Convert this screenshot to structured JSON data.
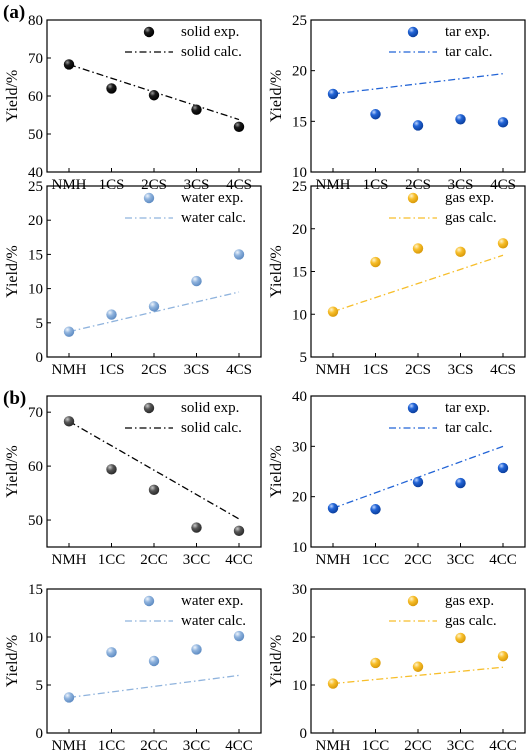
{
  "panel_labels": [
    "(a)",
    "(b)"
  ],
  "colors": {
    "solid": "#1a1a1a",
    "solid_b": "#555555",
    "tar": "#2264d6",
    "water": "#8fb3dd",
    "gas": "#f7be2a"
  },
  "chart_data": [
    {
      "type": "scatter",
      "panel": "(a)",
      "group": "solid",
      "categories": [
        "NMH",
        "1CS",
        "2CS",
        "3CS",
        "4CS"
      ],
      "ylabel": "Yield/%",
      "ylim": [
        40,
        80
      ],
      "yticks": [
        40,
        50,
        60,
        70,
        80
      ],
      "series": [
        {
          "name": "solid exp.",
          "kind": "points",
          "values": [
            68.3,
            62.0,
            60.2,
            56.4,
            51.9
          ]
        },
        {
          "name": "solid calc.",
          "kind": "line",
          "dash": "dashdot",
          "values": [
            68.3,
            null,
            null,
            null,
            53.8
          ]
        }
      ],
      "legend": "top-right"
    },
    {
      "type": "scatter",
      "panel": "(a)",
      "group": "tar",
      "categories": [
        "NMH",
        "1CS",
        "2CS",
        "3CS",
        "4CS"
      ],
      "ylabel": "Yield/%",
      "ylim": [
        10,
        25
      ],
      "yticks": [
        10,
        15,
        20,
        25
      ],
      "series": [
        {
          "name": "tar exp.",
          "kind": "points",
          "values": [
            17.7,
            15.7,
            14.6,
            15.2,
            14.9
          ]
        },
        {
          "name": "tar calc.",
          "kind": "line",
          "dash": "dashdot",
          "values": [
            17.7,
            null,
            null,
            null,
            19.7
          ]
        }
      ],
      "legend": "top-right"
    },
    {
      "type": "scatter",
      "panel": "(a)",
      "group": "water",
      "categories": [
        "NMH",
        "1CS",
        "2CS",
        "3CS",
        "4CS"
      ],
      "ylabel": "Yield/%",
      "ylim": [
        0,
        25
      ],
      "yticks": [
        0,
        5,
        10,
        15,
        20,
        25
      ],
      "series": [
        {
          "name": "water exp.",
          "kind": "points",
          "values": [
            3.7,
            6.2,
            7.4,
            11.1,
            15.0
          ]
        },
        {
          "name": "water calc.",
          "kind": "line",
          "dash": "dashdot",
          "values": [
            3.7,
            null,
            null,
            null,
            9.5
          ]
        }
      ],
      "legend": "top-right"
    },
    {
      "type": "scatter",
      "panel": "(a)",
      "group": "gas",
      "categories": [
        "NMH",
        "1CS",
        "2CS",
        "3CS",
        "4CS"
      ],
      "ylabel": "Yield/%",
      "ylim": [
        5,
        25
      ],
      "yticks": [
        5,
        10,
        15,
        20,
        25
      ],
      "series": [
        {
          "name": "gas exp.",
          "kind": "points",
          "values": [
            10.3,
            16.1,
            17.7,
            17.3,
            18.3
          ]
        },
        {
          "name": "gas calc.",
          "kind": "line",
          "dash": "dashdot",
          "values": [
            10.3,
            null,
            null,
            null,
            16.9
          ]
        }
      ],
      "legend": "top-right"
    },
    {
      "type": "scatter",
      "panel": "(b)",
      "group": "solid",
      "categories": [
        "NMH",
        "1CC",
        "2CC",
        "3CC",
        "4CC"
      ],
      "ylabel": "Yield/%",
      "ylim": [
        45,
        73
      ],
      "yticks": [
        50,
        60,
        70
      ],
      "series": [
        {
          "name": "solid exp.",
          "kind": "points",
          "values": [
            68.3,
            59.4,
            55.6,
            48.6,
            48.0
          ]
        },
        {
          "name": "solid calc.",
          "kind": "line",
          "dash": "dashdot",
          "values": [
            68.3,
            null,
            null,
            null,
            50.2
          ]
        }
      ],
      "legend": "top-right"
    },
    {
      "type": "scatter",
      "panel": "(b)",
      "group": "tar",
      "categories": [
        "NMH",
        "1CC",
        "2CC",
        "3CC",
        "4CC"
      ],
      "ylabel": "Yield/%",
      "ylim": [
        10,
        40
      ],
      "yticks": [
        10,
        20,
        30,
        40
      ],
      "series": [
        {
          "name": "tar exp.",
          "kind": "points",
          "values": [
            17.7,
            17.5,
            22.9,
            22.7,
            25.7
          ]
        },
        {
          "name": "tar calc.",
          "kind": "line",
          "dash": "dashdot",
          "values": [
            17.7,
            null,
            null,
            null,
            30.0
          ]
        }
      ],
      "legend": "top-right"
    },
    {
      "type": "scatter",
      "panel": "(b)",
      "group": "water",
      "categories": [
        "NMH",
        "1CC",
        "2CC",
        "3CC",
        "4CC"
      ],
      "ylabel": "Yield/%",
      "ylim": [
        0,
        15
      ],
      "yticks": [
        0,
        5,
        10,
        15
      ],
      "series": [
        {
          "name": "water exp.",
          "kind": "points",
          "values": [
            3.7,
            8.4,
            7.5,
            8.7,
            10.1
          ]
        },
        {
          "name": "water calc.",
          "kind": "line",
          "dash": "dashdot",
          "values": [
            3.7,
            null,
            null,
            null,
            6.0
          ]
        }
      ],
      "legend": "top-right"
    },
    {
      "type": "scatter",
      "panel": "(b)",
      "group": "gas",
      "categories": [
        "NMH",
        "1CC",
        "2CC",
        "3CC",
        "4CC"
      ],
      "ylabel": "Yield/%",
      "ylim": [
        0,
        30
      ],
      "yticks": [
        0,
        10,
        20,
        30
      ],
      "series": [
        {
          "name": "gas exp.",
          "kind": "points",
          "values": [
            10.3,
            14.6,
            13.8,
            19.8,
            16.0
          ]
        },
        {
          "name": "gas calc.",
          "kind": "line",
          "dash": "dashdot",
          "values": [
            10.3,
            null,
            null,
            null,
            13.7
          ]
        }
      ],
      "legend": "top-right"
    }
  ]
}
